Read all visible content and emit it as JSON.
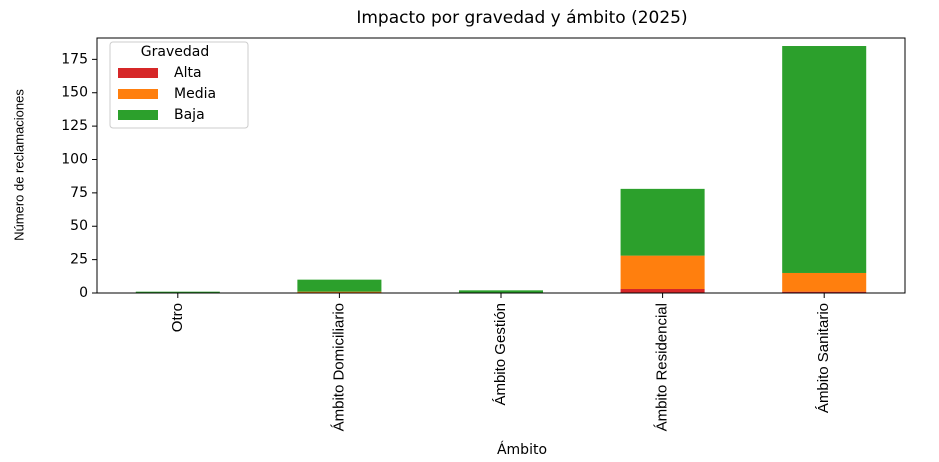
{
  "chart_data": {
    "type": "stacked_bar",
    "title": "Impacto por gravedad y ámbito (2025)",
    "x_label": "Ámbito",
    "y_label": "Número de reclamaciones",
    "categories": [
      "Otro",
      "Ámbito Domiciliario",
      "Ámbito Gestión",
      "Ámbito Residencial",
      "Ámbito Sanitario"
    ],
    "series": [
      {
        "name": "Alta",
        "color": "#d62728",
        "values": [
          0,
          0,
          0,
          3,
          1
        ]
      },
      {
        "name": "Media",
        "color": "#ff7f0e",
        "values": [
          0,
          1,
          0,
          25,
          14
        ]
      },
      {
        "name": "Baja",
        "color": "#2ca02c",
        "values": [
          1,
          9,
          2,
          50,
          170
        ]
      }
    ],
    "legend_title": "Gravedad",
    "legend": "upper left",
    "ylim": [
      0,
      191
    ],
    "yticks": [
      0,
      25,
      50,
      75,
      100,
      125,
      150,
      175
    ]
  }
}
